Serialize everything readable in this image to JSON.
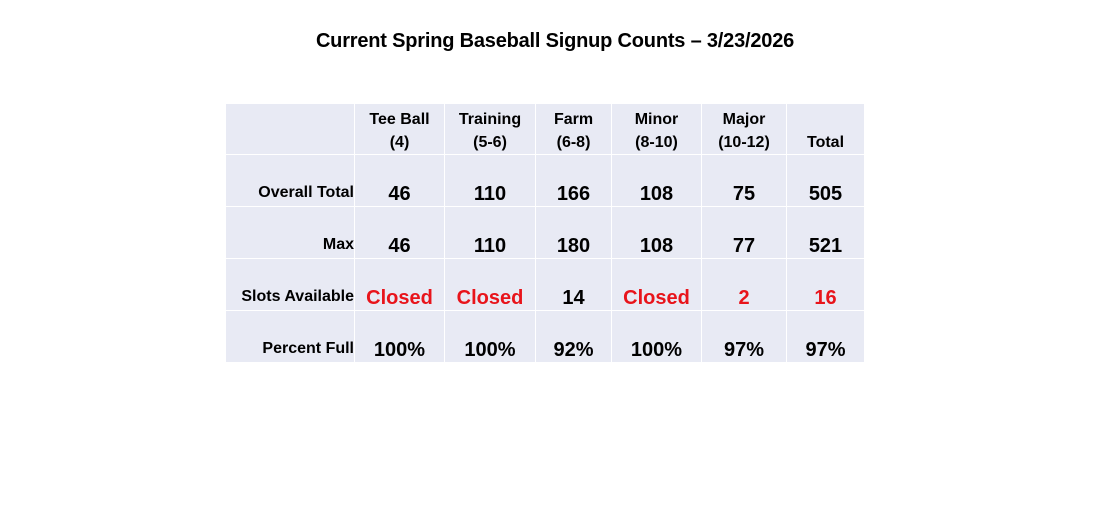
{
  "title": "Current Spring Baseball Signup Counts – 3/23/2026",
  "table": {
    "columns": [
      {
        "line1": "Tee Ball",
        "line2": "(4)"
      },
      {
        "line1": "Training",
        "line2": "(5-6)"
      },
      {
        "line1": "Farm",
        "line2": "(6-8)"
      },
      {
        "line1": "Minor",
        "line2": "(8-10)"
      },
      {
        "line1": "Major",
        "line2": "(10-12)"
      },
      {
        "line1": "",
        "line2": "Total"
      }
    ],
    "rows": [
      {
        "label": "Overall Total",
        "values": [
          "46",
          "110",
          "166",
          "108",
          "75",
          "505"
        ]
      },
      {
        "label": "Max",
        "values": [
          "46",
          "110",
          "180",
          "108",
          "77",
          "521"
        ]
      },
      {
        "label": "Slots Available",
        "values": [
          "Closed",
          "Closed",
          "14",
          "Closed",
          "2",
          "16"
        ]
      },
      {
        "label": "Percent Full",
        "values": [
          "100%",
          "100%",
          "92%",
          "100%",
          "97%",
          "97%"
        ]
      }
    ]
  },
  "colors": {
    "table_background": "#e8eaf4",
    "highlight_text": "#e8141b",
    "text": "#000000"
  }
}
